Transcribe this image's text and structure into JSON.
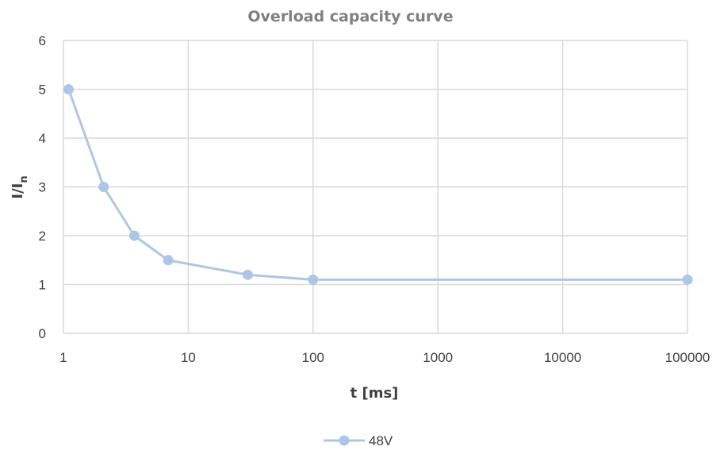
{
  "chart_data": {
    "type": "line",
    "title": "Overload capacity curve",
    "xlabel": "t [ms]",
    "ylabel": "I/I",
    "ylabel_subscript": "n",
    "x_scale": "log",
    "xlim": [
      1,
      100000
    ],
    "ylim": [
      0,
      6
    ],
    "x_ticks": [
      "1",
      "10",
      "100",
      "1000",
      "10000",
      "100000"
    ],
    "y_ticks": [
      "0",
      "1",
      "2",
      "3",
      "4",
      "5",
      "6"
    ],
    "grid": true,
    "legend_position": "bottom",
    "series": [
      {
        "name": "48V",
        "color": "#aec6e6",
        "marker": "circle",
        "x": [
          1.1,
          2.1,
          3.7,
          6.9,
          30,
          100,
          100000
        ],
        "y": [
          5,
          3,
          2,
          1.5,
          1.2,
          1.1,
          1.1
        ]
      }
    ]
  }
}
